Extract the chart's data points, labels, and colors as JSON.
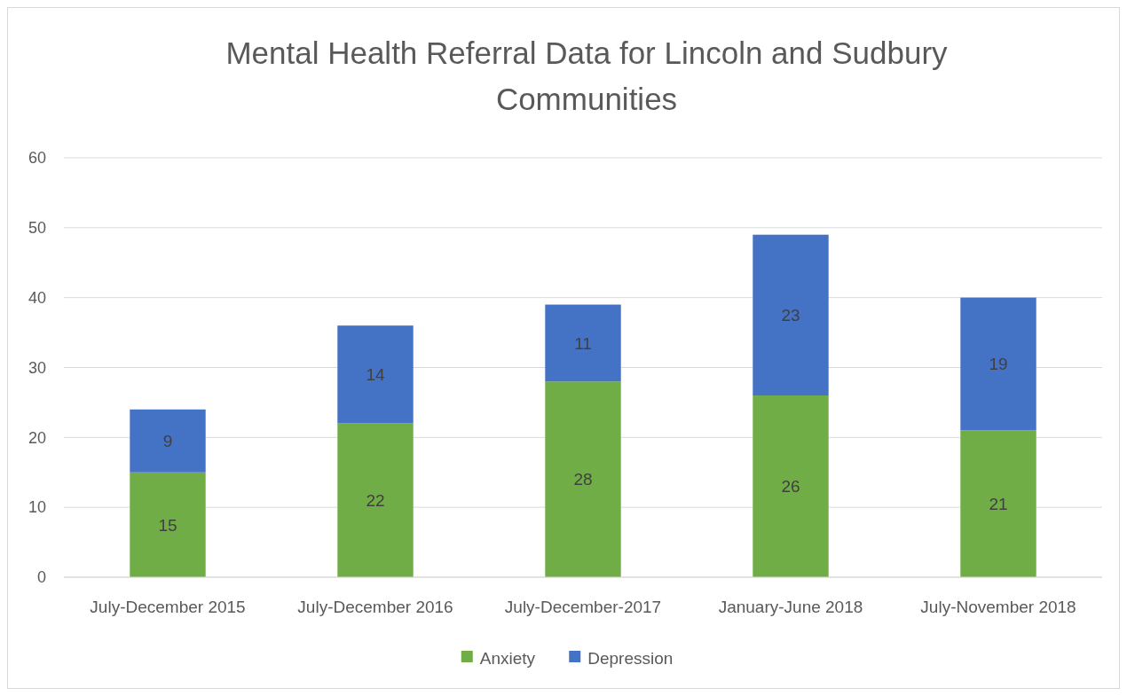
{
  "chart_data": {
    "type": "bar",
    "title": "Mental Health Referral Data for Lincoln and Sudbury Communities",
    "categories": [
      "July-December 2015",
      "July-December 2016",
      "July-December-2017",
      "January-June 2018",
      "July-November 2018"
    ],
    "series": [
      {
        "name": "Anxiety",
        "color": "#70ad47",
        "values": [
          15,
          22,
          28,
          26,
          21
        ]
      },
      {
        "name": "Depression",
        "color": "#4472c4",
        "values": [
          9,
          14,
          11,
          23,
          19
        ]
      }
    ],
    "stacked": true,
    "ylim": [
      0,
      60
    ],
    "yticks": [
      0,
      10,
      20,
      30,
      40,
      50,
      60
    ],
    "grid": "y",
    "legend": "bottom",
    "data_labels": true
  }
}
